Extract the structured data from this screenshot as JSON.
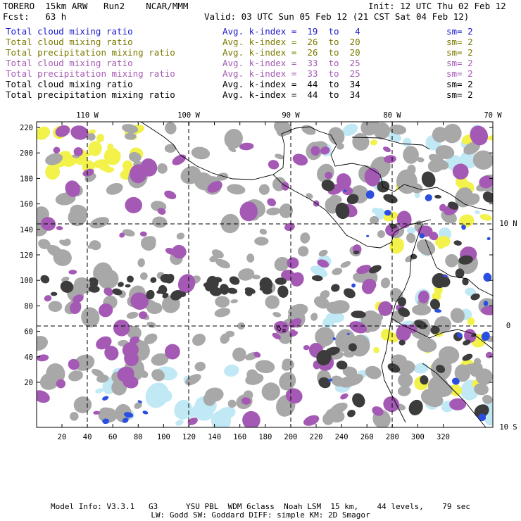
{
  "header": {
    "model": "TORERO  15km ARW   Run2    NCAR/MMM",
    "init": "Init: 12 UTC Thu 02 Feb 12",
    "fcst": "Fcst:   63 h",
    "valid": "Valid: 03 UTC Sun 05 Feb 12 (21 CST Sat 04 Feb 12)"
  },
  "legend": [
    {
      "name": "Total cloud mixing ratio",
      "index": "Avg. k-index =  19  to   4",
      "sm": "sm= 2",
      "color": "#1a1acc"
    },
    {
      "name": "Total cloud mixing ratio",
      "index": "Avg. k-index =  26  to  20",
      "sm": "sm= 2",
      "color": "#7a7a00"
    },
    {
      "name": "Total precipitation mixing ratio",
      "index": "Avg. k-index =  26  to  20",
      "sm": "sm= 2",
      "color": "#7a7a00"
    },
    {
      "name": "Total cloud mixing ratio",
      "index": "Avg. k-index =  33  to  25",
      "sm": "sm= 2",
      "color": "#a45ab4"
    },
    {
      "name": "Total precipitation mixing ratio",
      "index": "Avg. k-index =  33  to  25",
      "sm": "sm= 2",
      "color": "#a45ab4"
    },
    {
      "name": "Total cloud mixing ratio",
      "index": "Avg. k-index =  44  to  34",
      "sm": "sm= 2",
      "color": "#000000"
    },
    {
      "name": "Total precipitation mixing ratio",
      "index": "Avg. k-index =  44  to  34",
      "sm": "sm= 2",
      "color": "#000000"
    }
  ],
  "axes": {
    "top_labels": [
      "110 W",
      "100 W",
      "90 W",
      "80 W",
      "70 W"
    ],
    "right_labels": [
      "10 N",
      "0",
      "10 S"
    ],
    "y_ticks": [
      "220",
      "200",
      "180",
      "160",
      "140",
      "120",
      "100",
      "80",
      "60",
      "40",
      "20"
    ],
    "x_ticks": [
      "20",
      "40",
      "60",
      "80",
      "100",
      "120",
      "140",
      "160",
      "180",
      "200",
      "220",
      "240",
      "260",
      "280",
      "300",
      "320"
    ]
  },
  "footer": {
    "line1": "Model Info: V3.3.1   G3      YSU PBL  WDM 6class  Noah LSM  15 km,    44 levels,    79 sec",
    "line2": "LW: Godd SW: Goddard DIFF: simple KM: 2D Smagor"
  },
  "colors": {
    "gray": "#a8a8a8",
    "dark": "#3c3c3c",
    "purple": "#a45ab4",
    "yellow": "#f2f24a",
    "lightblue": "#c0e8f5",
    "blue": "#2a4ee0"
  }
}
